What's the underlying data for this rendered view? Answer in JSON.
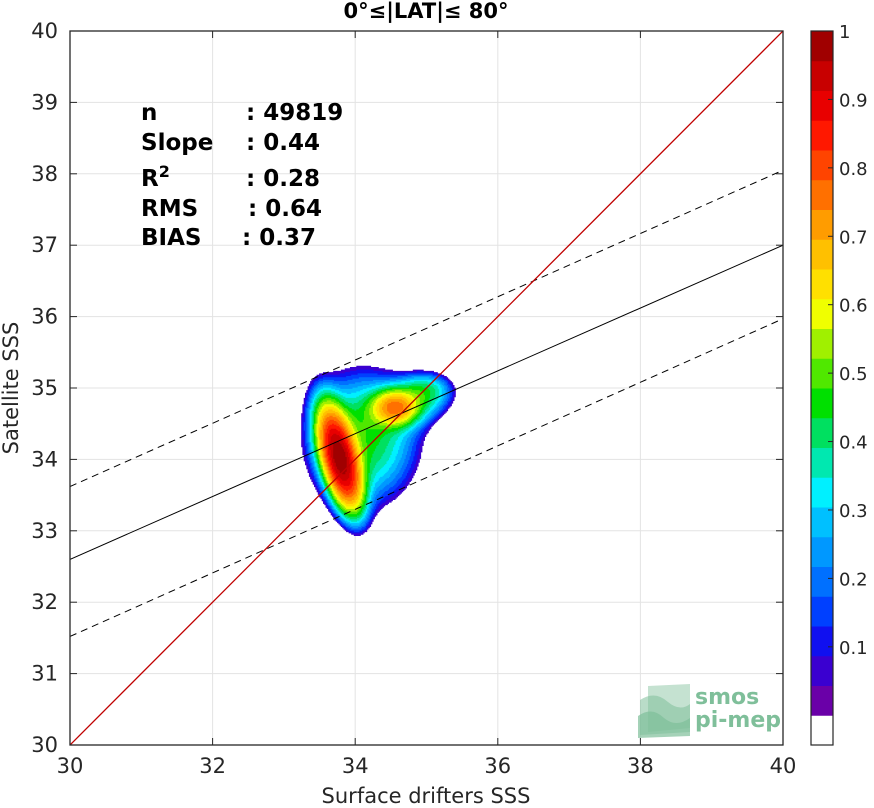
{
  "chart_data": {
    "type": "contour",
    "title": "0°≤|LAT|≤ 80°",
    "xlabel": "Surface drifters SSS",
    "ylabel": "Satellite SSS",
    "xlim": [
      30,
      40
    ],
    "ylim": [
      30,
      40
    ],
    "xticks": [
      "30",
      "32",
      "34",
      "36",
      "38",
      "40"
    ],
    "yticks": [
      "30",
      "31",
      "32",
      "33",
      "34",
      "35",
      "36",
      "37",
      "38",
      "39",
      "40"
    ],
    "grid": true,
    "stats": [
      {
        "label": "n",
        "value": ": 49819"
      },
      {
        "label": "Slope",
        "value": ": 0.44"
      },
      {
        "label": "R",
        "sup": "2",
        "value": ": 0.28"
      },
      {
        "label": "RMS",
        "value": ": 0.64"
      },
      {
        "label": "BIAS",
        "value": ": 0.37"
      }
    ],
    "identity_line": {
      "x": [
        30,
        40
      ],
      "y": [
        30,
        40
      ],
      "color": "#c00000"
    },
    "fit_line": {
      "x": [
        30,
        40
      ],
      "y": [
        32.6,
        37.0
      ],
      "color": "#000000"
    },
    "upper_band": {
      "x": [
        30,
        40
      ],
      "y": [
        33.62,
        38.05
      ],
      "style": "dashed"
    },
    "lower_band": {
      "x": [
        30,
        40
      ],
      "y": [
        31.52,
        35.97
      ],
      "style": "dashed"
    },
    "density_peak": {
      "x": 33.78,
      "y": 34.02
    },
    "secondary_peak": {
      "x": 34.55,
      "y": 34.73
    },
    "contour_levels": [
      0.05,
      0.1,
      0.2,
      0.3,
      0.4,
      0.5,
      0.6,
      0.7,
      0.8,
      0.9
    ],
    "colorbar": {
      "min": 0,
      "max": 1,
      "ticks": [
        "0.1",
        "0.2",
        "0.3",
        "0.4",
        "0.5",
        "0.6",
        "0.7",
        "0.8",
        "0.9",
        "1"
      ],
      "tick_values": [
        0.1,
        0.2,
        0.3,
        0.4,
        0.5,
        0.6,
        0.7,
        0.8,
        0.9,
        1.0
      ],
      "colors": [
        "#ffffff",
        "#6a00a8",
        "#3a00d0",
        "#1010f0",
        "#0040ff",
        "#0070ff",
        "#0098ff",
        "#00c0ff",
        "#00f0ff",
        "#00e8b0",
        "#00e060",
        "#00e000",
        "#50e800",
        "#a0f000",
        "#f0ff00",
        "#ffe000",
        "#ffc000",
        "#ff9c00",
        "#ff7000",
        "#ff4400",
        "#ff1800",
        "#e80000",
        "#c80000",
        "#a00000"
      ]
    }
  },
  "logo": {
    "line1": "smos",
    "line2": "pi-mep",
    "color": "#7fbf9a"
  }
}
